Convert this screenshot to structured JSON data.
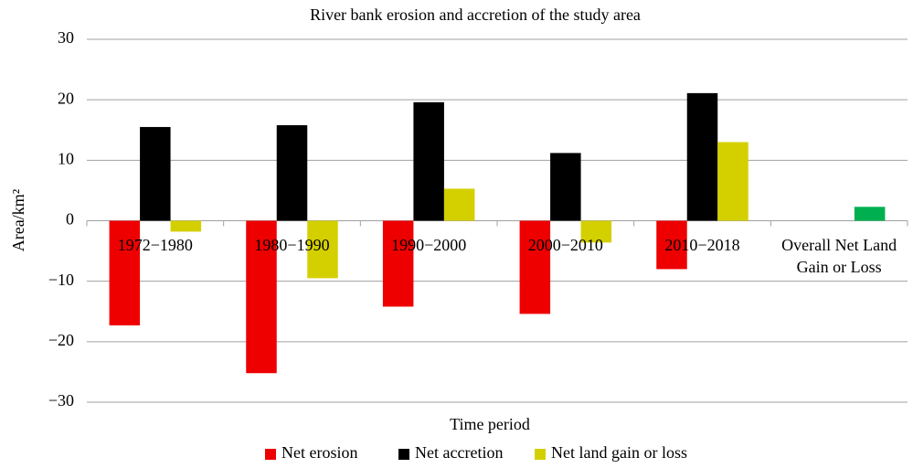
{
  "chart_data": {
    "type": "bar",
    "title": "River bank erosion and accretion of the study area",
    "x_label": "Time period",
    "y_label": "Area/km²",
    "categories": [
      "1972−1980",
      "1980−1990",
      "1990−2000",
      "2000−2010",
      "2010−2018",
      "Overall Net Land Gain or Loss"
    ],
    "series": [
      {
        "name": "Net erosion",
        "color": "#ee0000",
        "values": [
          -17.3,
          -25.2,
          -14.2,
          -15.4,
          -8.0,
          null
        ]
      },
      {
        "name": "Net accretion",
        "color": "#000000",
        "values": [
          15.5,
          15.8,
          19.6,
          11.2,
          21.1,
          null
        ]
      },
      {
        "name": "Net land gain or loss",
        "color": "#d4d000",
        "colors": [
          "#d4d000",
          "#d4d000",
          "#d4d000",
          "#d4d000",
          "#d4d000",
          "#00b050"
        ],
        "values": [
          -1.8,
          -9.5,
          5.3,
          -3.6,
          13.0,
          2.3
        ]
      }
    ],
    "ylim": [
      -30,
      30
    ],
    "yticks": [
      {
        "value": -30,
        "label": "−30"
      },
      {
        "value": -20,
        "label": "−20"
      },
      {
        "value": -10,
        "label": "−10"
      },
      0,
      10,
      20,
      30
    ],
    "grid": true,
    "legend": "bottom"
  }
}
